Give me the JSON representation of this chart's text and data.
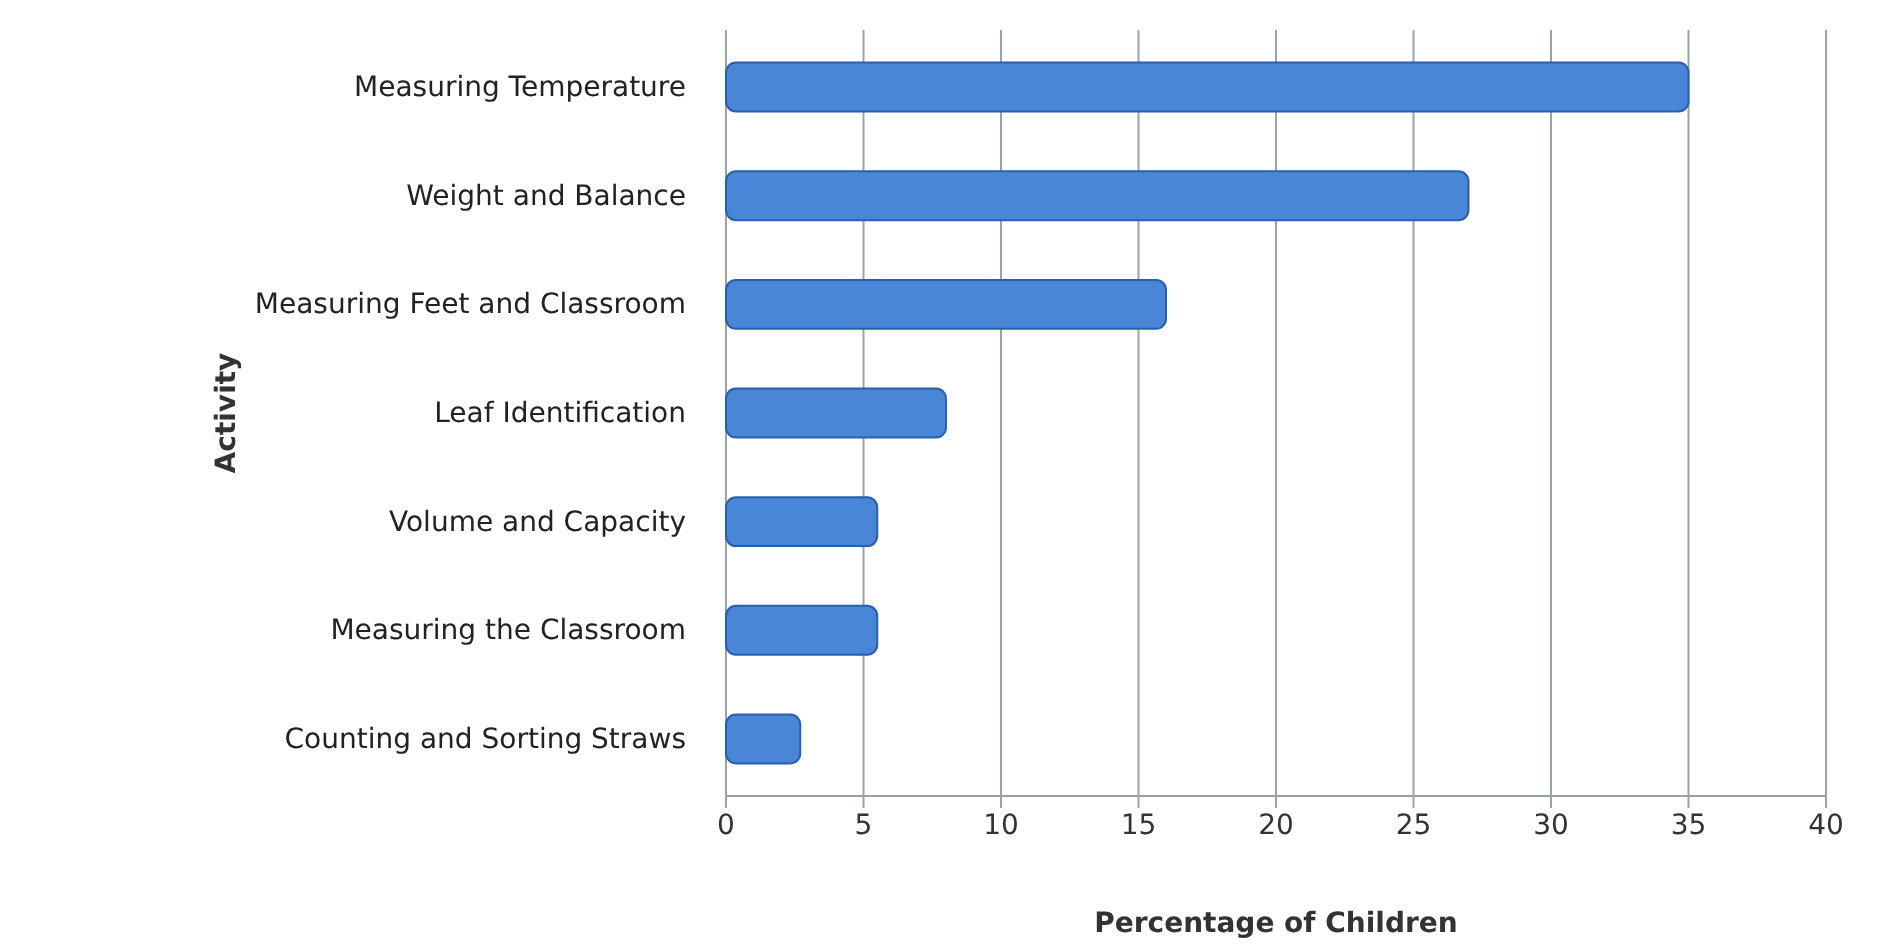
{
  "chart_data": {
    "type": "bar",
    "orientation": "horizontal",
    "xlabel": "Percentage of Children",
    "ylabel": "Activity",
    "categories": [
      "Measuring Temperature",
      "Weight and Balance",
      "Measuring Feet and Classroom",
      "Leaf Identification",
      "Volume and Capacity",
      "Measuring the Classroom",
      "Counting and Sorting Straws"
    ],
    "values": [
      35,
      27,
      16,
      8,
      5.5,
      5.5,
      2.7
    ],
    "color": "#4a86d8",
    "xlim": [
      0,
      40
    ],
    "xticks": [
      0,
      5,
      10,
      15,
      20,
      25,
      30,
      35,
      40
    ],
    "grid": "x"
  }
}
